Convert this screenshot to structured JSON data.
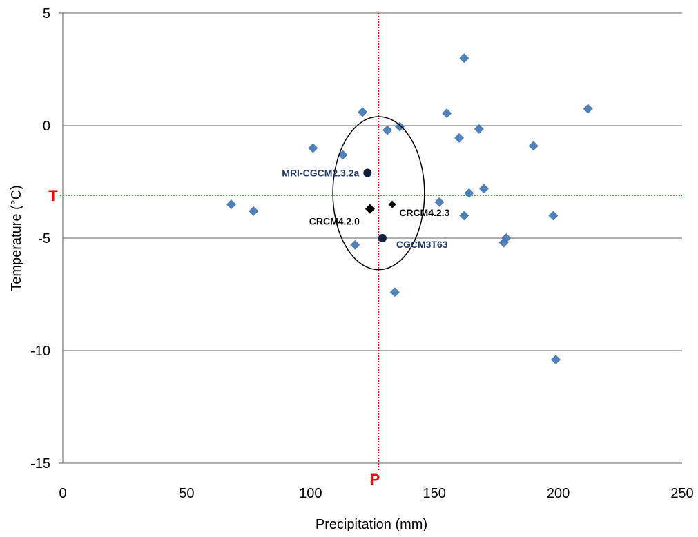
{
  "chart_data": {
    "type": "scatter",
    "xlabel": "Precipitation (mm)",
    "ylabel": "Temperature (°C)",
    "xlim": [
      0,
      250
    ],
    "ylim": [
      -15,
      5
    ],
    "x_ticks": [
      "0",
      "50",
      "100",
      "150",
      "200",
      "250"
    ],
    "y_ticks": [
      "5",
      "0",
      "-5",
      "-10",
      "-15"
    ],
    "grid": "horizontal",
    "colors": {
      "ensemble": "#4f81bd",
      "highlight_circle": "#000000",
      "highlight_diamond": "#000000",
      "label_navy": "#1f3864",
      "reference": "#ff0000",
      "gridline": "#808080"
    },
    "reference": {
      "x": 127.5,
      "y": -3.1,
      "x_letter": "P",
      "y_letter": "T"
    },
    "ellipse": {
      "cx": 127.5,
      "cy": -3.0,
      "rx": 18.5,
      "ry": 3.4
    },
    "ensemble_points": [
      {
        "x": 162,
        "y": 3.0
      },
      {
        "x": 212,
        "y": 0.75
      },
      {
        "x": 121,
        "y": 0.6
      },
      {
        "x": 155,
        "y": 0.55
      },
      {
        "x": 136,
        "y": -0.05
      },
      {
        "x": 131,
        "y": -0.2
      },
      {
        "x": 168,
        "y": -0.15
      },
      {
        "x": 160,
        "y": -0.55
      },
      {
        "x": 101,
        "y": -1.0
      },
      {
        "x": 113,
        "y": -1.3
      },
      {
        "x": 190,
        "y": -0.9
      },
      {
        "x": 170,
        "y": -2.8
      },
      {
        "x": 164,
        "y": -3.0
      },
      {
        "x": 152,
        "y": -3.4
      },
      {
        "x": 162,
        "y": -4.0
      },
      {
        "x": 68,
        "y": -3.5
      },
      {
        "x": 77,
        "y": -3.8
      },
      {
        "x": 198,
        "y": -4.0
      },
      {
        "x": 179,
        "y": -5.0
      },
      {
        "x": 178,
        "y": -5.2
      },
      {
        "x": 118,
        "y": -5.3
      },
      {
        "x": 134,
        "y": -7.4
      },
      {
        "x": 199,
        "y": -10.4
      }
    ],
    "highlighted_models": [
      {
        "name": "MRI-CGCM2.3.2a",
        "x": 123,
        "y": -2.1,
        "marker": "circle",
        "label_side": "left"
      },
      {
        "name": "CRCM4.2.0",
        "x": 124,
        "y": -3.7,
        "marker": "diamond",
        "label_side": "below-left"
      },
      {
        "name": "CRCM4.2.3",
        "x": 133,
        "y": -3.5,
        "marker": "diamond-small",
        "label_side": "right"
      },
      {
        "name": "CGCM3T63",
        "x": 129,
        "y": -5.0,
        "marker": "circle",
        "label_side": "below-right"
      }
    ]
  }
}
